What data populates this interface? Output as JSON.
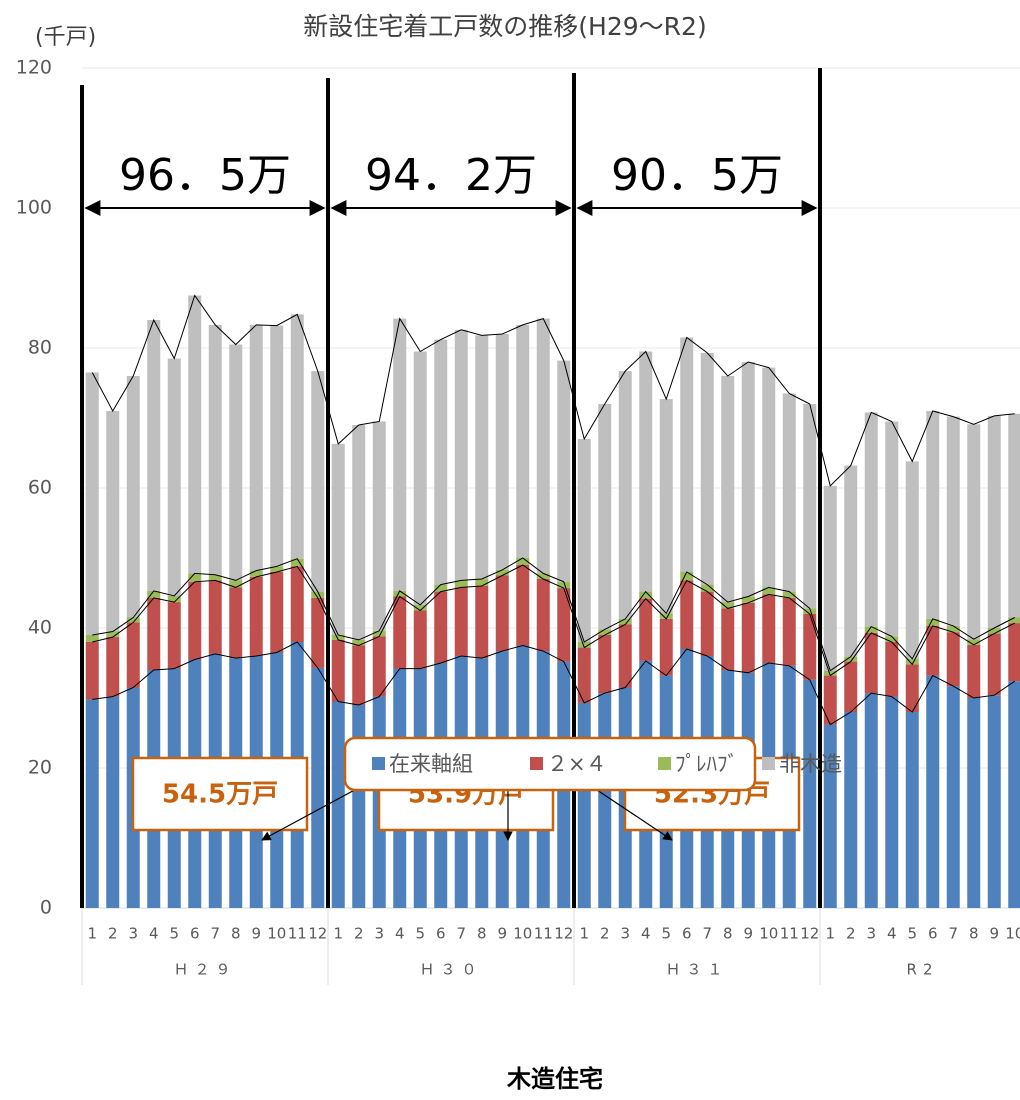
{
  "chart_data": {
    "type": "stacked_bar",
    "title": "新設住宅着工戸数の推移(H29〜R2)",
    "y_unit": "(千戸)",
    "categories": [
      "1",
      "2",
      "3",
      "4",
      "5",
      "6",
      "7",
      "8",
      "9",
      "10",
      "11",
      "12",
      "1",
      "2",
      "3",
      "4",
      "5",
      "6",
      "7",
      "8",
      "9",
      "10",
      "11",
      "12",
      "1",
      "2",
      "3",
      "4",
      "5",
      "6",
      "7",
      "8",
      "9",
      "10",
      "11",
      "12",
      "1",
      "2",
      "3",
      "4",
      "5",
      "6",
      "7",
      "8",
      "9",
      "10"
    ],
    "category_groups": [
      "Ｈ２９",
      "Ｈ３０",
      "Ｈ３１",
      "R2"
    ],
    "series": [
      {
        "name": "在来軸組",
        "color": "#4f81bd",
        "values": [
          29.8,
          30.2,
          31.5,
          34,
          34.2,
          35.5,
          36.3,
          35.7,
          36,
          36.5,
          38,
          34.3,
          29.5,
          29,
          30.2,
          34.2,
          34.2,
          35,
          36,
          35.7,
          36.7,
          37.5,
          36.7,
          35.2,
          29.3,
          30.7,
          31.5,
          35.3,
          33.2,
          37,
          36,
          34,
          33.6,
          35,
          34.6,
          32.6,
          26.2,
          28,
          30.7,
          30.2,
          28,
          33.2,
          31.7,
          30,
          30.4,
          32.4
        ]
      },
      {
        "name": "２×４",
        "color": "#c0504d",
        "values": [
          8.2,
          8.5,
          9.3,
          10.3,
          9.5,
          11.1,
          10.5,
          10.1,
          11.3,
          11.5,
          10.8,
          10,
          8.8,
          8.5,
          8.6,
          10.3,
          8.3,
          10.2,
          9.8,
          10.3,
          10.8,
          11.5,
          10.3,
          10.5,
          7.9,
          8.3,
          9,
          8.9,
          8.1,
          9.8,
          9.2,
          8.8,
          10,
          9.8,
          9.7,
          9.4,
          7,
          7.2,
          8.6,
          7.8,
          6.8,
          7.1,
          7.7,
          7.6,
          8.8,
          8.3
        ]
      },
      {
        "name": "ﾌﾟﾚﾊﾌﾞ",
        "color": "#9bbb59",
        "values": [
          1,
          0.8,
          0.7,
          1,
          0.9,
          1.2,
          0.8,
          1,
          0.9,
          0.8,
          1.1,
          0.9,
          0.7,
          0.8,
          0.8,
          0.8,
          0.8,
          1,
          1,
          1,
          0.8,
          1,
          0.8,
          0.9,
          0.8,
          0.8,
          0.8,
          1,
          0.8,
          1.2,
          1,
          0.9,
          0.9,
          1,
          0.9,
          0.8,
          0.7,
          0.7,
          0.9,
          0.8,
          0.8,
          1,
          0.9,
          0.8,
          0.8,
          0.8
        ]
      },
      {
        "name": "非木造",
        "color": "#bfbfbf",
        "values": [
          37.5,
          31.5,
          34.5,
          38.7,
          33.9,
          39.7,
          35.7,
          33.7,
          35.1,
          34.4,
          34.9,
          31.5,
          27.3,
          30.7,
          29.9,
          38.9,
          36.2,
          35,
          35.8,
          34.8,
          33.7,
          33.3,
          36.4,
          31.6,
          29,
          32.2,
          35.4,
          34.3,
          30.6,
          33.5,
          33.1,
          32.3,
          33.5,
          31.4,
          28.3,
          29.2,
          26.4,
          27.3,
          30.6,
          30.7,
          28.2,
          29.7,
          29.9,
          30.7,
          30.3,
          29.1
        ]
      }
    ],
    "ylim": [
      0,
      120
    ],
    "yticks": [
      0,
      20,
      40,
      60,
      80,
      100,
      120
    ],
    "grid": true,
    "period_totals": [
      "96．5万",
      "94．2万",
      "90．5万"
    ],
    "wood_totals": [
      "54.5万戸",
      "53.9万戸",
      "52.3万戸"
    ],
    "legend_group_label": "木造住宅"
  }
}
